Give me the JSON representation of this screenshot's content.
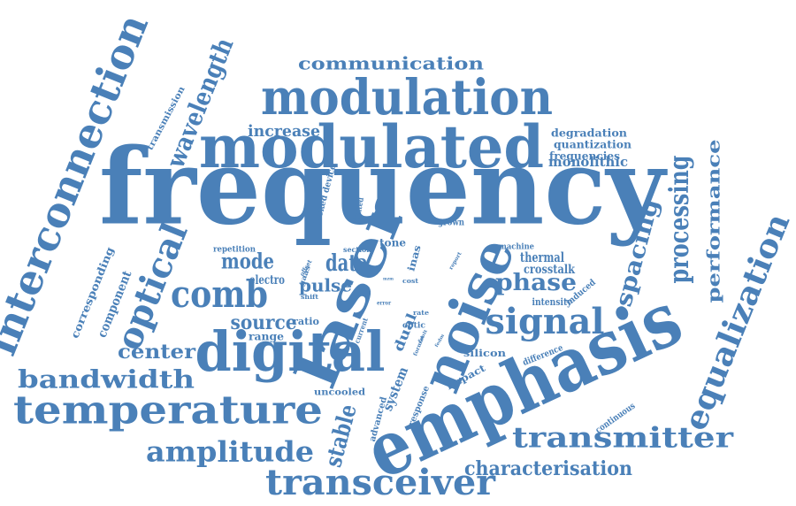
{
  "colors": {
    "word": "#4a80b8",
    "background": "#ffffff"
  },
  "words": [
    {
      "text": "frequency"
    },
    {
      "text": "emphasis"
    },
    {
      "text": "modulated"
    },
    {
      "text": "modulation"
    },
    {
      "text": "digital"
    },
    {
      "text": "interconnection"
    },
    {
      "text": "laser"
    },
    {
      "text": "noise"
    },
    {
      "text": "temperature"
    },
    {
      "text": "transceiver"
    },
    {
      "text": "transmitter"
    },
    {
      "text": "amplitude"
    },
    {
      "text": "signal"
    },
    {
      "text": "comb"
    },
    {
      "text": "optical"
    },
    {
      "text": "equalization"
    },
    {
      "text": "processing"
    },
    {
      "text": "bandwidth"
    },
    {
      "text": "characterisation"
    },
    {
      "text": "wavelength"
    },
    {
      "text": "spacing"
    },
    {
      "text": "communication"
    },
    {
      "text": "performance"
    },
    {
      "text": "data"
    },
    {
      "text": "phase"
    },
    {
      "text": "mode"
    },
    {
      "text": "stable"
    },
    {
      "text": "center"
    },
    {
      "text": "source"
    },
    {
      "text": "pulse"
    },
    {
      "text": "increase"
    },
    {
      "text": "monolithic"
    },
    {
      "text": "component"
    },
    {
      "text": "system"
    },
    {
      "text": "electro"
    },
    {
      "text": "crosstalk"
    },
    {
      "text": "thermal"
    },
    {
      "text": "dual"
    },
    {
      "text": "corresponding"
    },
    {
      "text": "range"
    },
    {
      "text": "degradation"
    },
    {
      "text": "quantization"
    },
    {
      "text": "frequencies"
    },
    {
      "text": "transmission"
    },
    {
      "text": "silicon"
    },
    {
      "text": "ratio"
    },
    {
      "text": "impact"
    },
    {
      "text": "tone"
    },
    {
      "text": "intensity"
    },
    {
      "text": "inas"
    },
    {
      "text": "induced"
    },
    {
      "text": "uncooled"
    },
    {
      "text": "continuous"
    },
    {
      "text": "advanced"
    },
    {
      "text": "response"
    },
    {
      "text": "difference"
    },
    {
      "text": "repetition"
    },
    {
      "text": "locked device"
    },
    {
      "text": "limited"
    },
    {
      "text": "grown"
    },
    {
      "text": "section"
    },
    {
      "text": "machine"
    },
    {
      "text": "gaas"
    },
    {
      "text": "offset"
    },
    {
      "text": "shift"
    },
    {
      "text": "optic"
    },
    {
      "text": "current"
    },
    {
      "text": "rate"
    },
    {
      "text": "cost"
    },
    {
      "text": "error"
    },
    {
      "text": "report"
    },
    {
      "text": "format"
    },
    {
      "text": "fault"
    },
    {
      "text": "fedm"
    },
    {
      "text": "mzm"
    },
    {
      "text": "fab"
    }
  ]
}
